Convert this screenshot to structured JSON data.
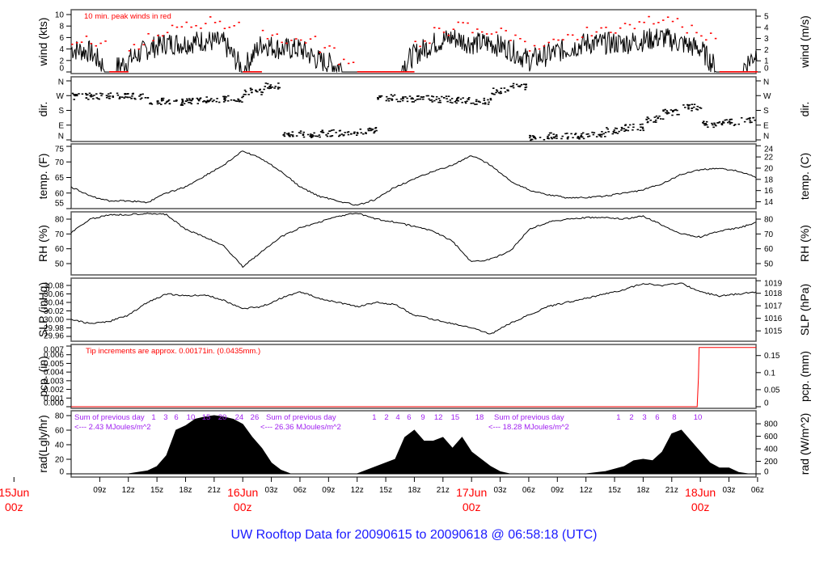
{
  "title": "UW Rooftop Data for 20090615  to  20090618 @ 06:58:18  (UTC)",
  "colors": {
    "title": "#1a1aff",
    "peak": "#ff0000",
    "date": "#ff0000",
    "rad_note": "#a020f0",
    "line": "#000000",
    "frame": "#555555"
  },
  "chart_data": [
    {
      "type": "line",
      "id": "wind",
      "ylabel": "wind (kts)",
      "ylabel_right": "wind (m/s)",
      "ylim": [
        0,
        10
      ],
      "yticks": [
        0,
        2,
        4,
        6,
        8,
        10
      ],
      "yticks_right": [
        0,
        1,
        2,
        3,
        4,
        5
      ],
      "annotation": "10 min. peak winds in red",
      "times": [
        "2009-06-15T06:00",
        "2009-06-15T08:00",
        "2009-06-15T10:00",
        "2009-06-15T12:00",
        "2009-06-15T14:00",
        "2009-06-15T16:00",
        "2009-06-15T18:00",
        "2009-06-15T20:00",
        "2009-06-15T22:00",
        "2009-06-16T00:00",
        "2009-06-16T02:00",
        "2009-06-16T04:00",
        "2009-06-16T06:00",
        "2009-06-16T08:00",
        "2009-06-16T10:00",
        "2009-06-16T12:00",
        "2009-06-16T14:00",
        "2009-06-16T16:00",
        "2009-06-16T18:00",
        "2009-06-16T20:00",
        "2009-06-16T22:00",
        "2009-06-17T00:00",
        "2009-06-17T02:00",
        "2009-06-17T04:00",
        "2009-06-17T06:00",
        "2009-06-17T08:00",
        "2009-06-17T10:00",
        "2009-06-17T12:00",
        "2009-06-17T14:00",
        "2009-06-17T16:00",
        "2009-06-17T18:00",
        "2009-06-17T20:00",
        "2009-06-17T22:00",
        "2009-06-18T00:00",
        "2009-06-18T02:00",
        "2009-06-18T04:00",
        "2009-06-18T06:00"
      ],
      "values": [
        4,
        3.5,
        0,
        2,
        4,
        5,
        5,
        5.5,
        5,
        0.5,
        5,
        4,
        4,
        2,
        1,
        0,
        0,
        0,
        3,
        5,
        6,
        5,
        5,
        4,
        2,
        3,
        4,
        5,
        5,
        5,
        5.5,
        6,
        5,
        4,
        0,
        0,
        3.5
      ],
      "peaks": [
        5.5,
        5,
        0,
        4,
        6,
        7.5,
        8,
        9,
        8,
        0,
        6.5,
        5.5,
        5.5,
        4,
        2,
        0,
        0,
        0,
        5,
        7,
        8,
        7,
        7,
        6,
        4,
        5,
        6,
        7,
        7.5,
        8,
        9,
        9.5,
        7.5,
        6,
        0,
        0,
        6
      ]
    },
    {
      "type": "scatter",
      "id": "dir",
      "ylabel": "dir.",
      "ylabel_right": "dir.",
      "yticks": [
        "N",
        "E",
        "S",
        "W",
        "N"
      ],
      "ytick_degrees": [
        0,
        90,
        180,
        270,
        360
      ],
      "times": [
        "2009-06-15T06:00",
        "2009-06-15T08:00",
        "2009-06-15T10:00",
        "2009-06-15T12:00",
        "2009-06-15T14:00",
        "2009-06-15T16:00",
        "2009-06-15T18:00",
        "2009-06-15T20:00",
        "2009-06-15T22:00",
        "2009-06-16T00:00",
        "2009-06-16T02:00",
        "2009-06-16T04:00",
        "2009-06-16T06:00",
        "2009-06-16T08:00",
        "2009-06-16T10:00",
        "2009-06-16T12:00",
        "2009-06-16T14:00",
        "2009-06-16T16:00",
        "2009-06-16T18:00",
        "2009-06-16T20:00",
        "2009-06-16T22:00",
        "2009-06-17T00:00",
        "2009-06-17T02:00",
        "2009-06-17T04:00",
        "2009-06-17T06:00",
        "2009-06-17T08:00",
        "2009-06-17T10:00",
        "2009-06-17T12:00",
        "2009-06-17T14:00",
        "2009-06-17T16:00",
        "2009-06-17T18:00",
        "2009-06-17T20:00",
        "2009-06-17T22:00",
        "2009-06-18T00:00",
        "2009-06-18T02:00",
        "2009-06-18T04:00",
        "2009-06-18T06:00"
      ],
      "values": [
        270,
        272,
        275,
        270,
        240,
        235,
        240,
        250,
        255,
        300,
        330,
        40,
        35,
        45,
        50,
        60,
        260,
        255,
        255,
        250,
        245,
        240,
        300,
        330,
        20,
        30,
        30,
        35,
        60,
        80,
        130,
        170,
        200,
        100,
        110,
        130,
        40
      ]
    },
    {
      "type": "line",
      "id": "temp",
      "ylabel": "temp. (F)",
      "ylabel_right": "temp. (C)",
      "ylim": [
        55,
        75
      ],
      "yticks": [
        55,
        60,
        65,
        70,
        75
      ],
      "yticks_right": [
        14,
        16,
        18,
        20,
        22,
        24
      ],
      "times": [
        "2009-06-15T06:00",
        "2009-06-15T08:00",
        "2009-06-15T10:00",
        "2009-06-15T12:00",
        "2009-06-15T14:00",
        "2009-06-15T16:00",
        "2009-06-15T18:00",
        "2009-06-15T20:00",
        "2009-06-15T22:00",
        "2009-06-16T00:00",
        "2009-06-16T02:00",
        "2009-06-16T04:00",
        "2009-06-16T06:00",
        "2009-06-16T08:00",
        "2009-06-16T10:00",
        "2009-06-16T12:00",
        "2009-06-16T14:00",
        "2009-06-16T16:00",
        "2009-06-16T18:00",
        "2009-06-16T20:00",
        "2009-06-16T22:00",
        "2009-06-17T00:00",
        "2009-06-17T02:00",
        "2009-06-17T04:00",
        "2009-06-17T06:00",
        "2009-06-17T08:00",
        "2009-06-17T10:00",
        "2009-06-17T12:00",
        "2009-06-17T14:00",
        "2009-06-17T16:00",
        "2009-06-17T18:00",
        "2009-06-17T20:00",
        "2009-06-17T22:00",
        "2009-06-18T00:00",
        "2009-06-18T02:00",
        "2009-06-18T04:00",
        "2009-06-18T06:00"
      ],
      "values": [
        62,
        59,
        57.5,
        57.5,
        57,
        60,
        62,
        65.5,
        69,
        73.5,
        71,
        67,
        62,
        59,
        57.5,
        56,
        58,
        62,
        64.5,
        67,
        69,
        72,
        69,
        64,
        61,
        59.5,
        58.5,
        58.5,
        59,
        60,
        61,
        63,
        66,
        67.5,
        68,
        67,
        65
      ]
    },
    {
      "type": "line",
      "id": "rh",
      "ylabel": "RH (%)",
      "ylabel_right": "RH (%)",
      "ylim": [
        45,
        85
      ],
      "yticks": [
        50,
        60,
        70,
        80
      ],
      "yticks_right": [
        50,
        60,
        70,
        80
      ],
      "times": [
        "2009-06-15T06:00",
        "2009-06-15T08:00",
        "2009-06-15T10:00",
        "2009-06-15T12:00",
        "2009-06-15T14:00",
        "2009-06-15T16:00",
        "2009-06-15T18:00",
        "2009-06-15T20:00",
        "2009-06-15T22:00",
        "2009-06-16T00:00",
        "2009-06-16T02:00",
        "2009-06-16T04:00",
        "2009-06-16T06:00",
        "2009-06-16T08:00",
        "2009-06-16T10:00",
        "2009-06-16T12:00",
        "2009-06-16T14:00",
        "2009-06-16T16:00",
        "2009-06-16T18:00",
        "2009-06-16T20:00",
        "2009-06-16T22:00",
        "2009-06-17T00:00",
        "2009-06-17T02:00",
        "2009-06-17T04:00",
        "2009-06-17T06:00",
        "2009-06-17T08:00",
        "2009-06-17T10:00",
        "2009-06-17T12:00",
        "2009-06-17T14:00",
        "2009-06-17T16:00",
        "2009-06-17T18:00",
        "2009-06-17T20:00",
        "2009-06-17T22:00",
        "2009-06-18T00:00",
        "2009-06-18T02:00",
        "2009-06-18T04:00",
        "2009-06-18T06:00"
      ],
      "values": [
        71,
        80,
        83,
        83,
        84,
        83,
        73,
        68,
        62,
        48,
        58,
        68,
        74,
        78,
        82,
        84,
        80,
        78,
        75,
        72,
        65,
        51,
        53,
        58,
        73,
        78,
        80,
        81,
        81,
        80,
        82,
        76,
        70,
        68,
        72,
        74,
        78
      ]
    },
    {
      "type": "line",
      "id": "slp",
      "ylabel": "SLP (inHg)",
      "ylabel_right": "SLP (hPa)",
      "ylim": [
        29.95,
        30.09
      ],
      "yticks": [
        29.96,
        29.98,
        30.0,
        30.02,
        30.04,
        30.06,
        30.08
      ],
      "yticks_right": [
        1015,
        1016,
        1017,
        1018,
        1019
      ],
      "times": [
        "2009-06-15T06:00",
        "2009-06-15T08:00",
        "2009-06-15T10:00",
        "2009-06-15T12:00",
        "2009-06-15T14:00",
        "2009-06-15T16:00",
        "2009-06-15T18:00",
        "2009-06-15T20:00",
        "2009-06-15T22:00",
        "2009-06-16T00:00",
        "2009-06-16T02:00",
        "2009-06-16T04:00",
        "2009-06-16T06:00",
        "2009-06-16T08:00",
        "2009-06-16T10:00",
        "2009-06-16T12:00",
        "2009-06-16T14:00",
        "2009-06-16T16:00",
        "2009-06-16T18:00",
        "2009-06-16T20:00",
        "2009-06-16T22:00",
        "2009-06-17T00:00",
        "2009-06-17T02:00",
        "2009-06-17T04:00",
        "2009-06-17T06:00",
        "2009-06-17T08:00",
        "2009-06-17T10:00",
        "2009-06-17T12:00",
        "2009-06-17T14:00",
        "2009-06-17T16:00",
        "2009-06-17T18:00",
        "2009-06-17T20:00",
        "2009-06-17T22:00",
        "2009-06-18T00:00",
        "2009-06-18T02:00",
        "2009-06-18T04:00",
        "2009-06-18T06:00"
      ],
      "values": [
        30.0,
        29.99,
        29.995,
        30.01,
        30.04,
        30.06,
        30.055,
        30.058,
        30.045,
        30.025,
        30.03,
        30.05,
        30.065,
        30.05,
        30.04,
        30.03,
        30.04,
        30.035,
        30.01,
        30.0,
        29.99,
        29.98,
        29.965,
        29.99,
        30.01,
        30.03,
        30.04,
        30.05,
        30.06,
        30.07,
        30.085,
        30.08,
        30.085,
        30.065,
        30.055,
        30.06,
        30.065
      ]
    },
    {
      "type": "line",
      "id": "pcp",
      "ylabel": "pcp. (in)",
      "ylabel_right": "pcp. (mm)",
      "ylim": [
        0,
        0.007
      ],
      "yticks": [
        0.0,
        0.001,
        0.002,
        0.003,
        0.004,
        0.005,
        0.006,
        0.007
      ],
      "yticks_right": [
        0,
        0.05,
        0.1,
        0.15
      ],
      "annotation": "Tip increments are approx. 0.00171in. (0.0435mm.)",
      "times": [
        "2009-06-15T06:00",
        "2009-06-17T23:40",
        "2009-06-17T23:44",
        "2009-06-17T23:48",
        "2009-06-17T23:52",
        "2009-06-18T06:58"
      ],
      "values": [
        0,
        0,
        0.00171,
        0.00342,
        0.00684,
        0.00684
      ]
    },
    {
      "type": "area",
      "id": "rad",
      "ylabel": "rad(Lgly/hr)",
      "ylabel_right": "rad (W/m^2)",
      "ylim": [
        0,
        80
      ],
      "yticks": [
        0,
        20,
        40,
        60,
        80
      ],
      "yticks_right": [
        0,
        200,
        400,
        600,
        800
      ],
      "times": [
        "2009-06-15T12:00",
        "2009-06-15T14:00",
        "2009-06-15T15:00",
        "2009-06-15T16:00",
        "2009-06-15T17:00",
        "2009-06-15T18:00",
        "2009-06-15T19:00",
        "2009-06-15T20:00",
        "2009-06-15T21:00",
        "2009-06-15T22:00",
        "2009-06-15T23:00",
        "2009-06-16T00:00",
        "2009-06-16T01:00",
        "2009-06-16T02:00",
        "2009-06-16T03:00",
        "2009-06-16T04:00",
        "2009-06-16T05:00",
        "2009-06-16T12:00",
        "2009-06-16T14:00",
        "2009-06-16T16:00",
        "2009-06-16T17:00",
        "2009-06-16T18:00",
        "2009-06-16T19:00",
        "2009-06-16T20:00",
        "2009-06-16T21:00",
        "2009-06-16T22:00",
        "2009-06-16T23:00",
        "2009-06-17T00:00",
        "2009-06-17T01:00",
        "2009-06-17T02:00",
        "2009-06-17T03:00",
        "2009-06-17T04:00",
        "2009-06-17T12:00",
        "2009-06-17T14:00",
        "2009-06-17T16:00",
        "2009-06-17T17:00",
        "2009-06-17T18:00",
        "2009-06-17T19:00",
        "2009-06-17T20:00",
        "2009-06-17T21:00",
        "2009-06-17T22:00",
        "2009-06-17T23:00",
        "2009-06-18T00:00",
        "2009-06-18T01:00",
        "2009-06-18T02:00",
        "2009-06-18T03:00",
        "2009-06-18T04:00",
        "2009-06-18T05:00"
      ],
      "values": [
        0,
        4,
        10,
        25,
        60,
        66,
        75,
        78,
        80,
        78,
        75,
        68,
        50,
        35,
        15,
        5,
        0,
        0,
        10,
        20,
        50,
        60,
        45,
        45,
        50,
        35,
        50,
        30,
        20,
        10,
        3,
        0,
        0,
        3,
        10,
        18,
        20,
        18,
        30,
        55,
        60,
        45,
        30,
        15,
        8,
        8,
        2,
        0
      ],
      "notes": [
        {
          "line1": "Sum of previous day",
          "line2": "<--- 2.43 MJoules/m^2",
          "time": "2009-06-15T06:00"
        },
        {
          "line1": "Sum of previous day",
          "line2": "<--- 26.36 MJoules/m^2",
          "time": "2009-06-16T01:45"
        },
        {
          "line1": "Sum of previous day",
          "line2": "<--- 18.28 MJoules/m^2",
          "time": "2009-06-17T01:30"
        }
      ],
      "cumulative_labels": [
        {
          "value": "1",
          "time": "2009-06-15T14:39"
        },
        {
          "value": "3",
          "time": "2009-06-15T15:55"
        },
        {
          "value": "6",
          "time": "2009-06-15T17:02"
        },
        {
          "value": "10",
          "time": "2009-06-15T18:33"
        },
        {
          "value": "15",
          "time": "2009-06-15T20:10"
        },
        {
          "value": "20",
          "time": "2009-06-15T21:52"
        },
        {
          "value": "24",
          "time": "2009-06-15T23:38"
        },
        {
          "value": "26",
          "time": "2009-06-16T01:15"
        },
        {
          "value": "1",
          "time": "2009-06-16T13:48"
        },
        {
          "value": "2",
          "time": "2009-06-16T15:05"
        },
        {
          "value": "4",
          "time": "2009-06-16T16:16"
        },
        {
          "value": "6",
          "time": "2009-06-16T17:27"
        },
        {
          "value": "9",
          "time": "2009-06-16T18:54"
        },
        {
          "value": "12",
          "time": "2009-06-16T20:31"
        },
        {
          "value": "15",
          "time": "2009-06-16T22:17"
        },
        {
          "value": "18",
          "time": "2009-06-17T00:50"
        },
        {
          "value": "1",
          "time": "2009-06-17T15:25"
        },
        {
          "value": "2",
          "time": "2009-06-17T16:47"
        },
        {
          "value": "3",
          "time": "2009-06-17T18:08"
        },
        {
          "value": "6",
          "time": "2009-06-17T19:29"
        },
        {
          "value": "8",
          "time": "2009-06-17T21:16"
        },
        {
          "value": "10",
          "time": "2009-06-17T23:44"
        }
      ]
    }
  ],
  "x_axis": {
    "range": [
      "2009-06-15T06:00",
      "2009-06-18T06:58"
    ],
    "tick_labels": [
      "09z",
      "12z",
      "15z",
      "18z",
      "21z",
      "03z",
      "06z",
      "09z",
      "12z",
      "15z",
      "18z",
      "21z",
      "03z",
      "06z",
      "09z",
      "12z",
      "15z",
      "18z",
      "21z",
      "03z",
      "06z"
    ],
    "tick_times": [
      "2009-06-15T09:00",
      "2009-06-15T12:00",
      "2009-06-15T15:00",
      "2009-06-15T18:00",
      "2009-06-15T21:00",
      "2009-06-16T03:00",
      "2009-06-16T06:00",
      "2009-06-16T09:00",
      "2009-06-16T12:00",
      "2009-06-16T15:00",
      "2009-06-16T18:00",
      "2009-06-16T21:00",
      "2009-06-17T03:00",
      "2009-06-17T06:00",
      "2009-06-17T09:00",
      "2009-06-17T12:00",
      "2009-06-17T15:00",
      "2009-06-17T18:00",
      "2009-06-17T21:00",
      "2009-06-18T03:00",
      "2009-06-18T06:00"
    ],
    "date_labels": [
      {
        "day": "15Jun",
        "hour": "00z",
        "time": "2009-06-15T00:00"
      },
      {
        "day": "16Jun",
        "hour": "00z",
        "time": "2009-06-16T00:00"
      },
      {
        "day": "17Jun",
        "hour": "00z",
        "time": "2009-06-17T00:00"
      },
      {
        "day": "18Jun",
        "hour": "00z",
        "time": "2009-06-18T00:00"
      }
    ]
  }
}
